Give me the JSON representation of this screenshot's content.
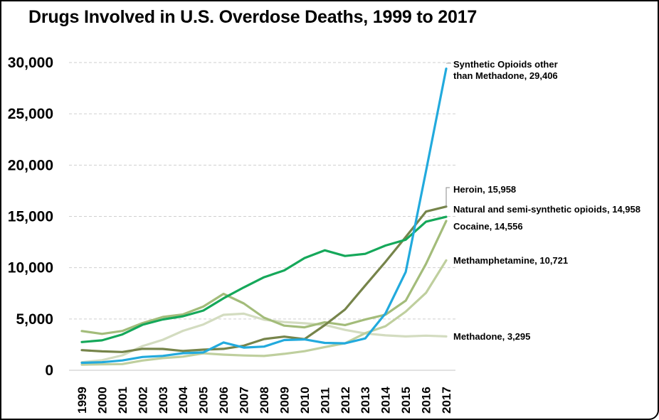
{
  "chart_data": {
    "type": "line",
    "title": "Drugs Involved in U.S. Overdose Deaths, 1999 to 2017",
    "xlabel": "",
    "ylabel": "",
    "ylim": [
      0,
      30000
    ],
    "grid": true,
    "yticks": [
      0,
      5000,
      10000,
      15000,
      20000,
      25000,
      30000
    ],
    "ytick_labels": [
      "0",
      "5,000",
      "10,000",
      "15,000",
      "20,000",
      "25,000",
      "30,000"
    ],
    "x": [
      "1999",
      "2000",
      "2001",
      "2002",
      "2003",
      "2004",
      "2005",
      "2006",
      "2007",
      "2008",
      "2009",
      "2010",
      "2011",
      "2012",
      "2013",
      "2014",
      "2015",
      "2016",
      "2017"
    ],
    "legend": "direct-labels-right",
    "series": [
      {
        "name": "Methadone",
        "label_lines": [
          "Methadone, 3,295"
        ],
        "color": "#d3dcc0",
        "values": [
          784,
          986,
          1456,
          2358,
          2972,
          3845,
          4460,
          5406,
          5518,
          4924,
          4696,
          4577,
          4418,
          3932,
          3591,
          3400,
          3301,
          3373,
          3295
        ]
      },
      {
        "name": "Methamphetamine",
        "label_lines": [
          "Methamphetamine, 10,721"
        ],
        "color": "#bfcf9e",
        "values": [
          547,
          578,
          604,
          951,
          1185,
          1327,
          1647,
          1526,
          1442,
          1390,
          1601,
          1854,
          2261,
          2635,
          3616,
          4298,
          5716,
          7542,
          10721
        ]
      },
      {
        "name": "Cocaine",
        "label_lines": [
          "Cocaine, 14,556"
        ],
        "color": "#a3bc7a",
        "values": [
          3822,
          3544,
          3833,
          4599,
          5199,
          5443,
          6208,
          7448,
          6512,
          5129,
          4350,
          4183,
          4681,
          4404,
          4944,
          5415,
          6784,
          10375,
          14556
        ]
      },
      {
        "name": "Heroin",
        "label_lines": [
          "Heroin, 15,958"
        ],
        "color": "#76844a",
        "values": [
          1960,
          1842,
          1779,
          2089,
          2080,
          1878,
          2009,
          2088,
          2399,
          3041,
          3278,
          3036,
          4397,
          5925,
          8257,
          10574,
          12989,
          15469,
          15958
        ]
      },
      {
        "name": "Natural and semi-synthetic opioids",
        "label_lines": [
          "Natural and semi-synthetic opioids, 14,958"
        ],
        "color": "#15a85a",
        "values": [
          2749,
          2917,
          3495,
          4431,
          4951,
          5263,
          5818,
          7017,
          8080,
          9071,
          9735,
          10943,
          11693,
          11140,
          11346,
          12159,
          12727,
          14487,
          14958
        ]
      },
      {
        "name": "Synthetic Opioids other than Methadone",
        "label_lines": [
          "Synthetic Opioids other",
          "than Methadone, 29,406"
        ],
        "color": "#22aadd",
        "values": [
          730,
          782,
          957,
          1295,
          1400,
          1664,
          1742,
          2707,
          2213,
          2306,
          2946,
          3007,
          2666,
          2628,
          3105,
          5544,
          9580,
          19413,
          29406
        ]
      }
    ]
  }
}
